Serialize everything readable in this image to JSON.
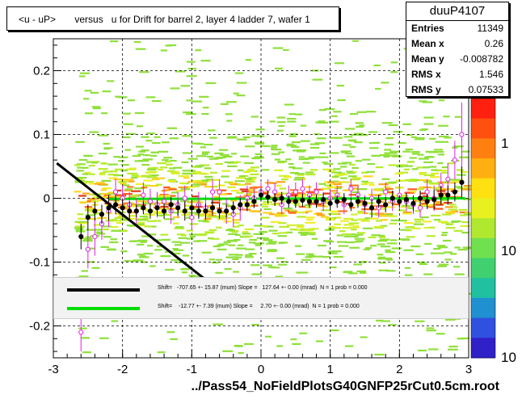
{
  "title": "<u - uP>       versus   u for Drift for barrel 2, layer 4 ladder 7, wafer 1",
  "stats": {
    "name": "duuP4107",
    "rows": [
      {
        "label": "Entries",
        "value": "11349"
      },
      {
        "label": "Mean x",
        "value": "0.26"
      },
      {
        "label": "Mean y",
        "value": "-0.008782"
      },
      {
        "label": "RMS x",
        "value": "1.546"
      },
      {
        "label": "RMS y",
        "value": "0.07533"
      }
    ]
  },
  "x_axis_title": "../Pass54_NoFieldPlotsG40GNFP25rCut0.5cm.root",
  "legend": [
    {
      "text": "Shift=   -707.65 +- 15.87 (mum) Slope =   127.64 +- 0.00 (mrad)  N = 1 prob = 0.000",
      "color": "#000000"
    },
    {
      "text": "Shift=    -12.77 +- 7.39 (mum) Slope =     2.70 +- 0.00 (mrad)  N = 1 prob = 0.000",
      "color": "#00dd00"
    }
  ],
  "chart_data": {
    "type": "scatter",
    "xlim": [
      -3,
      3
    ],
    "ylim": [
      -0.25,
      0.25
    ],
    "x_ticks": [
      -3,
      -2,
      -1,
      0,
      1,
      2,
      3
    ],
    "x_tick_labels": [
      "-3",
      "-2",
      "-1",
      "0",
      "1",
      "2",
      "3"
    ],
    "y_ticks": [
      -0.2,
      -0.1,
      0,
      0.1,
      0.2
    ],
    "y_tick_labels": [
      "-0.2",
      "-0.1",
      "0",
      "0.1",
      "0.2"
    ],
    "grid": true,
    "colorbar_labels": [
      "1",
      "10",
      "10"
    ],
    "fit_lines": [
      {
        "x": [
          -2.95,
          -0.3
        ],
        "y": [
          0.055,
          -0.17
        ],
        "color": "#000000"
      },
      {
        "x": [
          -2.2,
          2.95
        ],
        "y": [
          -0.001,
          0.0
        ],
        "color": "#00dd00"
      }
    ],
    "profile_black": {
      "x": [
        -2.6,
        -2.5,
        -2.4,
        -2.3,
        -2.2,
        -2.1,
        -2.0,
        -1.9,
        -1.8,
        -1.7,
        -1.6,
        -1.5,
        -1.4,
        -1.3,
        -1.2,
        -1.1,
        -1.0,
        -0.9,
        -0.8,
        -0.7,
        -0.6,
        -0.5,
        -0.4,
        -0.3,
        -0.2,
        -0.1,
        0.0,
        0.1,
        0.2,
        0.3,
        0.4,
        0.5,
        0.6,
        0.7,
        0.8,
        0.9,
        1.0,
        1.1,
        1.2,
        1.3,
        1.4,
        1.5,
        1.6,
        1.7,
        1.8,
        1.9,
        2.0,
        2.1,
        2.2,
        2.3,
        2.4,
        2.5,
        2.6,
        2.7,
        2.8,
        2.9
      ],
      "y": [
        -0.06,
        -0.03,
        -0.02,
        -0.025,
        -0.015,
        -0.01,
        -0.015,
        -0.02,
        -0.02,
        -0.015,
        -0.02,
        -0.015,
        -0.02,
        -0.01,
        -0.015,
        -0.02,
        -0.015,
        -0.02,
        -0.02,
        -0.015,
        -0.02,
        -0.02,
        -0.015,
        -0.01,
        -0.01,
        -0.005,
        0.005,
        0.002,
        -0.002,
        0.0,
        -0.005,
        -0.005,
        -0.003,
        -0.005,
        -0.005,
        -0.002,
        -0.008,
        -0.005,
        -0.002,
        -0.01,
        -0.005,
        -0.008,
        -0.015,
        -0.005,
        -0.01,
        0.0,
        -0.005,
        -0.002,
        -0.008,
        0.0,
        -0.005,
        -0.002,
        0.005,
        0.005,
        0.01,
        0.025
      ],
      "err": [
        0.02,
        0.02,
        0.015,
        0.015,
        0.02,
        0.015,
        0.015,
        0.015,
        0.01,
        0.01,
        0.012,
        0.012,
        0.012,
        0.012,
        0.012,
        0.015,
        0.012,
        0.012,
        0.012,
        0.012,
        0.012,
        0.01,
        0.01,
        0.01,
        0.01,
        0.01,
        0.01,
        0.01,
        0.01,
        0.01,
        0.01,
        0.01,
        0.01,
        0.01,
        0.01,
        0.01,
        0.01,
        0.01,
        0.01,
        0.01,
        0.01,
        0.01,
        0.015,
        0.01,
        0.012,
        0.012,
        0.01,
        0.01,
        0.012,
        0.012,
        0.012,
        0.015,
        0.015,
        0.015,
        0.015,
        0.025
      ]
    },
    "profile_magenta": {
      "x": [
        -2.6,
        -2.5,
        -2.4,
        -2.3,
        -2.2,
        -2.1,
        -2.0,
        -1.9,
        -1.8,
        -1.7,
        -1.6,
        -1.5,
        -1.4,
        -1.3,
        -1.2,
        -1.1,
        -1.0,
        -0.9,
        -0.8,
        -0.7,
        -0.6,
        -0.5,
        -0.4,
        -0.3,
        -0.2,
        -0.1,
        0.0,
        0.1,
        0.2,
        0.3,
        0.4,
        0.5,
        0.6,
        0.7,
        0.8,
        0.9,
        1.0,
        1.1,
        1.2,
        1.3,
        1.4,
        1.5,
        1.6,
        1.7,
        1.8,
        1.9,
        2.0,
        2.1,
        2.2,
        2.3,
        2.4,
        2.5,
        2.6,
        2.7,
        2.8,
        2.9
      ],
      "y": [
        -0.21,
        -0.08,
        -0.06,
        -0.04,
        -0.02,
        0.01,
        0.0,
        -0.01,
        -0.02,
        0.005,
        -0.005,
        -0.01,
        -0.005,
        -0.02,
        -0.01,
        0.0,
        -0.03,
        -0.01,
        -0.015,
        0.01,
        0.01,
        -0.02,
        -0.025,
        -0.015,
        0.0,
        0.0,
        0.01,
        0.015,
        0.01,
        -0.01,
        0.005,
        0.01,
        0.015,
        0.005,
        0.01,
        -0.005,
        0.0,
        0.005,
        -0.01,
        0.015,
        0.005,
        -0.01,
        0.0,
        -0.015,
        0.01,
        -0.005,
        0.005,
        -0.005,
        -0.01,
        -0.015,
        0.01,
        0.0,
        0.02,
        0.03,
        0.06,
        0.1
      ],
      "err": [
        0.03,
        0.03,
        0.03,
        0.025,
        0.025,
        0.02,
        0.02,
        0.02,
        0.02,
        0.02,
        0.02,
        0.02,
        0.02,
        0.02,
        0.02,
        0.02,
        0.02,
        0.02,
        0.02,
        0.02,
        0.02,
        0.02,
        0.02,
        0.02,
        0.02,
        0.015,
        0.015,
        0.015,
        0.015,
        0.015,
        0.015,
        0.015,
        0.015,
        0.015,
        0.015,
        0.015,
        0.015,
        0.015,
        0.015,
        0.015,
        0.015,
        0.015,
        0.015,
        0.015,
        0.015,
        0.015,
        0.015,
        0.015,
        0.015,
        0.015,
        0.02,
        0.02,
        0.02,
        0.025,
        0.03,
        0.05
      ]
    }
  }
}
